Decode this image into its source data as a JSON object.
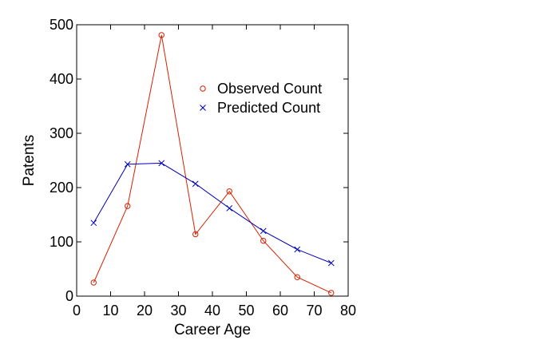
{
  "chart_data": {
    "type": "line",
    "xlabel": "Career Age",
    "ylabel": "Patents",
    "xlim": [
      0,
      80
    ],
    "ylim": [
      0,
      500
    ],
    "xticks": [
      0,
      10,
      20,
      30,
      40,
      50,
      60,
      70,
      80
    ],
    "yticks": [
      0,
      100,
      200,
      300,
      400,
      500
    ],
    "grid": false,
    "legend_position": "top-right",
    "series": [
      {
        "name": "Observed Count",
        "marker": "circle",
        "color": "#d62000",
        "x": [
          5,
          15,
          25,
          35,
          45,
          55,
          65,
          75
        ],
        "y": [
          25,
          166,
          481,
          114,
          193,
          102,
          35,
          6
        ]
      },
      {
        "name": "Predicted Count",
        "marker": "x",
        "color": "#0000bb",
        "x": [
          5,
          15,
          25,
          35,
          45,
          55,
          65,
          75
        ],
        "y": [
          135,
          243,
          245,
          207,
          162,
          120,
          86,
          61
        ]
      }
    ]
  }
}
